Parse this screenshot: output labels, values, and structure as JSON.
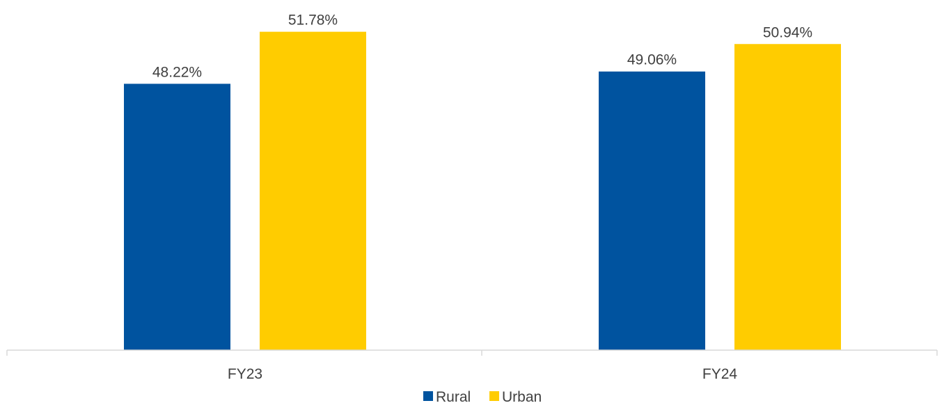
{
  "chart_data": {
    "type": "bar",
    "categories": [
      "FY23",
      "FY24"
    ],
    "series": [
      {
        "name": "Rural",
        "values": [
          48.22,
          49.06
        ],
        "labels": [
          "48.22%",
          "49.06%"
        ],
        "color": "#00539F"
      },
      {
        "name": "Urban",
        "values": [
          51.78,
          50.94
        ],
        "labels": [
          "51.78%",
          "50.94%"
        ],
        "color": "#FFCC00"
      }
    ],
    "ylim": [
      30,
      53
    ],
    "grid": false,
    "legend_position": "bottom-center",
    "axis_color": "#D9D9D9"
  }
}
